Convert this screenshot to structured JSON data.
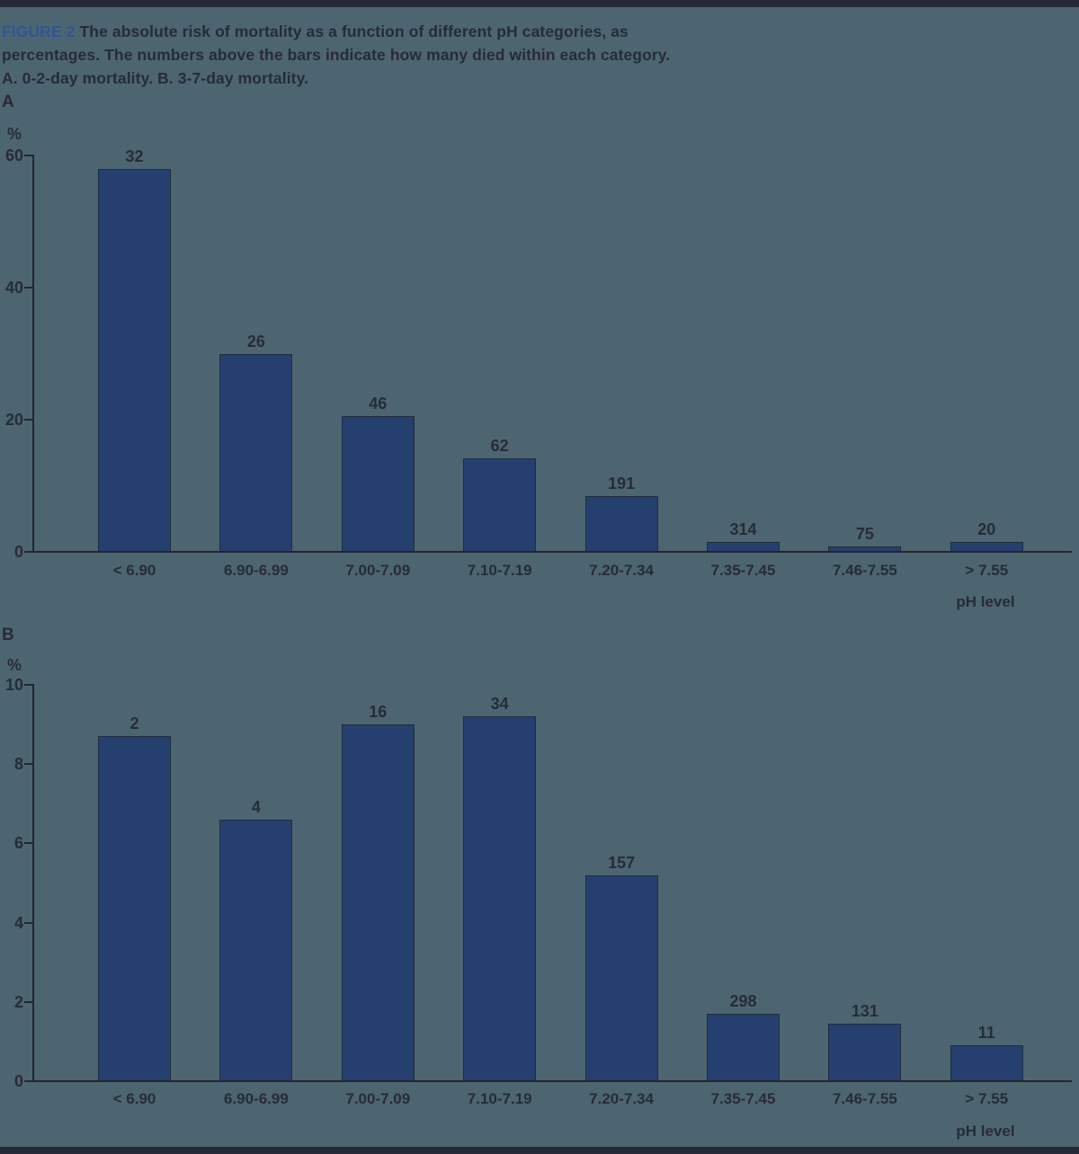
{
  "page": {
    "background": "#4d6570",
    "strip_color": "#262a36"
  },
  "header": {
    "figure_label": "FIGURE 2",
    "caption_line1": "The absolute risk of mortality as a function of different pH categories, as",
    "caption_line2": "percentages. The numbers above the bars indicate how many died within each category.",
    "caption_line3": "A. 0-2-day mortality. B. 3-7-day mortality."
  },
  "colors": {
    "bar": "#25406e",
    "bar_border": "#1f2c3e",
    "axis_line": "#23262f",
    "text": "#272b38",
    "figure_label_blue": "#2e5694"
  },
  "chart_data": [
    {
      "id": "A",
      "type": "bar",
      "title": "0-2-day mortality",
      "panel_label": "A",
      "y_unit_label": "%",
      "x_axis_label": "pH level",
      "ylim": [
        0,
        60
      ],
      "yticks": [
        0,
        20,
        40,
        60
      ],
      "categories": [
        "< 6.90",
        "6.90-6.99",
        "7.00-7.09",
        "7.10-7.19",
        "7.20-7.34",
        "7.35-7.45",
        "7.46-7.55",
        "> 7.55"
      ],
      "values_percent": [
        58,
        30,
        20.5,
        14.2,
        8.5,
        1.5,
        0.8,
        1.5
      ],
      "counts_above_bars": [
        32,
        26,
        46,
        62,
        191,
        314,
        75,
        20
      ],
      "legend": "none",
      "grid": "off"
    },
    {
      "id": "B",
      "type": "bar",
      "title": "3-7-day mortality",
      "panel_label": "B",
      "y_unit_label": "%",
      "x_axis_label": "pH level",
      "ylim": [
        0,
        10
      ],
      "yticks": [
        0,
        2,
        4,
        6,
        8,
        10
      ],
      "categories": [
        "< 6.90",
        "6.90-6.99",
        "7.00-7.09",
        "7.10-7.19",
        "7.20-7.34",
        "7.35-7.45",
        "7.46-7.55",
        "> 7.55"
      ],
      "values_percent": [
        8.7,
        6.6,
        9.0,
        9.2,
        5.2,
        1.7,
        1.45,
        0.9
      ],
      "counts_above_bars": [
        2,
        4,
        16,
        34,
        157,
        298,
        131,
        11
      ],
      "legend": "none",
      "grid": "off"
    }
  ]
}
